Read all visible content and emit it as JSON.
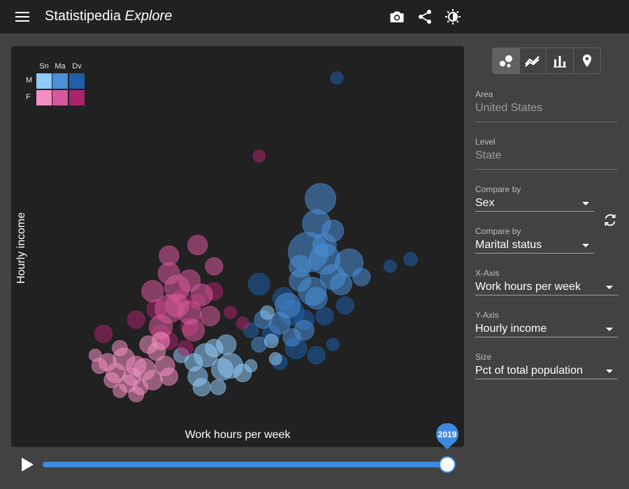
{
  "app": {
    "title_main": "Statistipedia",
    "title_sub": "Explore"
  },
  "toolbar": {
    "icons": [
      "menu-icon",
      "camera-icon",
      "share-icon",
      "brightness-icon"
    ]
  },
  "chart_types": [
    {
      "name": "bubble",
      "icon": "bubble-chart-icon",
      "active": true
    },
    {
      "name": "line",
      "icon": "line-chart-icon",
      "active": false
    },
    {
      "name": "bar",
      "icon": "bar-chart-icon",
      "active": false
    },
    {
      "name": "map",
      "icon": "map-pin-icon",
      "active": false
    }
  ],
  "controls": {
    "area": {
      "label": "Area",
      "value": "United States"
    },
    "level": {
      "label": "Level",
      "value": "State"
    },
    "compare1": {
      "label": "Compare by",
      "value": "Sex"
    },
    "compare2": {
      "label": "Compare by",
      "value": "Marital status"
    },
    "x_axis": {
      "label": "X-Axis",
      "value": "Work hours per week"
    },
    "y_axis": {
      "label": "Y-Axis",
      "value": "Hourly income"
    },
    "size": {
      "label": "Size",
      "value": "Pct of total population"
    }
  },
  "legend": {
    "columns": [
      "Sn",
      "Ma",
      "Dv"
    ],
    "rows": [
      "M",
      "F"
    ],
    "colors": {
      "M": [
        "#90caf9",
        "#4a90d9",
        "#1e5fa8"
      ],
      "F": [
        "#f48fc1",
        "#d8599b",
        "#a8246a"
      ]
    }
  },
  "timeline": {
    "year": "2019",
    "progress": 1.0
  },
  "chart_data": {
    "type": "scatter",
    "xlabel": "Work hours per week",
    "ylabel": "Hourly income",
    "grid": false,
    "series": [
      {
        "group": "M-Dv",
        "color": "#1e5fa8",
        "points": [
          [
            0.71,
            0.95,
            0.01
          ],
          [
            0.89,
            0.44,
            0.012
          ],
          [
            0.84,
            0.42,
            0.01
          ],
          [
            0.52,
            0.37,
            0.03
          ],
          [
            0.58,
            0.33,
            0.03
          ],
          [
            0.6,
            0.29,
            0.04
          ],
          [
            0.63,
            0.27,
            0.025
          ],
          [
            0.55,
            0.23,
            0.02
          ],
          [
            0.68,
            0.28,
            0.02
          ],
          [
            0.73,
            0.31,
            0.02
          ],
          [
            0.5,
            0.24,
            0.015
          ],
          [
            0.61,
            0.19,
            0.03
          ],
          [
            0.66,
            0.17,
            0.02
          ],
          [
            0.57,
            0.15,
            0.015
          ],
          [
            0.7,
            0.2,
            0.01
          ]
        ]
      },
      {
        "group": "M-Ma",
        "color": "#4a90d9",
        "points": [
          [
            0.67,
            0.61,
            0.06
          ],
          [
            0.66,
            0.54,
            0.05
          ],
          [
            0.64,
            0.46,
            0.1
          ],
          [
            0.68,
            0.44,
            0.06
          ],
          [
            0.74,
            0.43,
            0.05
          ],
          [
            0.7,
            0.39,
            0.04
          ],
          [
            0.65,
            0.35,
            0.05
          ],
          [
            0.62,
            0.38,
            0.03
          ],
          [
            0.59,
            0.31,
            0.04
          ],
          [
            0.66,
            0.33,
            0.03
          ],
          [
            0.72,
            0.37,
            0.03
          ],
          [
            0.57,
            0.26,
            0.03
          ],
          [
            0.63,
            0.24,
            0.025
          ],
          [
            0.53,
            0.27,
            0.02
          ],
          [
            0.6,
            0.22,
            0.02
          ],
          [
            0.68,
            0.48,
            0.035
          ],
          [
            0.77,
            0.39,
            0.02
          ],
          [
            0.52,
            0.2,
            0.015
          ],
          [
            0.62,
            0.42,
            0.03
          ],
          [
            0.7,
            0.52,
            0.03
          ]
        ]
      },
      {
        "group": "M-Sn",
        "color": "#90caf9",
        "points": [
          [
            0.39,
            0.17,
            0.035
          ],
          [
            0.37,
            0.11,
            0.025
          ],
          [
            0.43,
            0.13,
            0.03
          ],
          [
            0.41,
            0.19,
            0.02
          ],
          [
            0.45,
            0.14,
            0.04
          ],
          [
            0.36,
            0.15,
            0.02
          ],
          [
            0.33,
            0.17,
            0.015
          ],
          [
            0.38,
            0.08,
            0.02
          ],
          [
            0.42,
            0.08,
            0.015
          ],
          [
            0.48,
            0.12,
            0.02
          ],
          [
            0.54,
            0.29,
            0.012
          ],
          [
            0.55,
            0.21,
            0.012
          ],
          [
            0.56,
            0.16,
            0.01
          ],
          [
            0.5,
            0.14,
            0.01
          ],
          [
            0.44,
            0.2,
            0.025
          ]
        ]
      },
      {
        "group": "F-Dv",
        "color": "#a8246a",
        "points": [
          [
            0.52,
            0.73,
            0.01
          ],
          [
            0.22,
            0.27,
            0.02
          ],
          [
            0.28,
            0.23,
            0.02
          ],
          [
            0.35,
            0.25,
            0.02
          ],
          [
            0.33,
            0.33,
            0.02
          ],
          [
            0.27,
            0.3,
            0.025
          ],
          [
            0.3,
            0.21,
            0.02
          ],
          [
            0.45,
            0.29,
            0.01
          ],
          [
            0.41,
            0.35,
            0.02
          ],
          [
            0.37,
            0.32,
            0.015
          ],
          [
            0.48,
            0.26,
            0.01
          ],
          [
            0.14,
            0.23,
            0.02
          ],
          [
            0.34,
            0.19,
            0.015
          ]
        ]
      },
      {
        "group": "F-Ma",
        "color": "#d8599b",
        "points": [
          [
            0.3,
            0.3,
            0.05
          ],
          [
            0.32,
            0.36,
            0.04
          ],
          [
            0.35,
            0.29,
            0.035
          ],
          [
            0.36,
            0.24,
            0.03
          ],
          [
            0.28,
            0.25,
            0.035
          ],
          [
            0.32,
            0.31,
            0.035
          ],
          [
            0.38,
            0.34,
            0.03
          ],
          [
            0.37,
            0.48,
            0.025
          ],
          [
            0.3,
            0.4,
            0.03
          ],
          [
            0.26,
            0.35,
            0.03
          ],
          [
            0.41,
            0.42,
            0.02
          ],
          [
            0.3,
            0.45,
            0.025
          ],
          [
            0.35,
            0.38,
            0.03
          ],
          [
            0.4,
            0.28,
            0.025
          ]
        ]
      },
      {
        "group": "F-Sn",
        "color": "#f48fc1",
        "points": [
          [
            0.15,
            0.15,
            0.02
          ],
          [
            0.19,
            0.16,
            0.03
          ],
          [
            0.22,
            0.14,
            0.025
          ],
          [
            0.17,
            0.12,
            0.025
          ],
          [
            0.21,
            0.11,
            0.02
          ],
          [
            0.24,
            0.13,
            0.03
          ],
          [
            0.26,
            0.1,
            0.025
          ],
          [
            0.2,
            0.09,
            0.02
          ],
          [
            0.23,
            0.08,
            0.015
          ],
          [
            0.13,
            0.14,
            0.015
          ],
          [
            0.16,
            0.1,
            0.015
          ],
          [
            0.27,
            0.18,
            0.02
          ],
          [
            0.25,
            0.2,
            0.02
          ],
          [
            0.29,
            0.14,
            0.025
          ],
          [
            0.22,
            0.06,
            0.015
          ],
          [
            0.18,
            0.07,
            0.012
          ],
          [
            0.3,
            0.11,
            0.02
          ],
          [
            0.18,
            0.19,
            0.015
          ],
          [
            0.12,
            0.17,
            0.01
          ],
          [
            0.28,
            0.21,
            0.02
          ]
        ]
      }
    ]
  }
}
